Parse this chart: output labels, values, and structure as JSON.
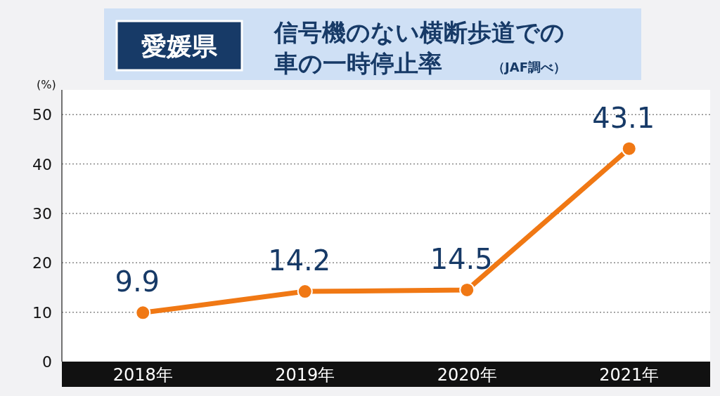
{
  "chart_data": {
    "type": "line",
    "title": "愛媛県",
    "subtitle": "信号機のない横断歩道での車の一時停止率",
    "annotations": [
      "（JAF調べ）"
    ],
    "ylabel": "(%)",
    "categories": [
      "2018年",
      "2019年",
      "2020年",
      "2021年"
    ],
    "series": [
      {
        "color": "#f07814",
        "values": [
          9.9,
          14.2,
          14.5,
          43.1
        ]
      }
    ],
    "ylim": [
      0,
      55
    ],
    "yticks": [
      0,
      10,
      20,
      30,
      40,
      50
    ],
    "grid": "y",
    "marker": "circle",
    "data_labels": true
  }
}
